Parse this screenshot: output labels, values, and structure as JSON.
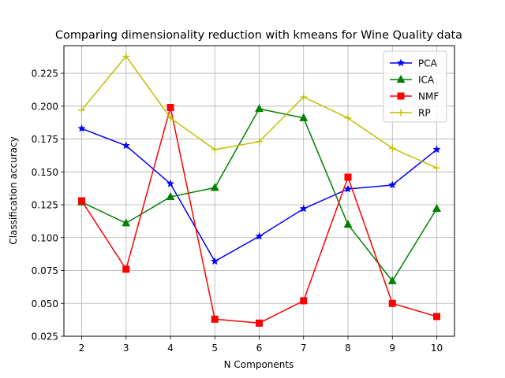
{
  "chart_data": {
    "type": "line",
    "title": "Comparing dimensionality reduction with kmeans for Wine Quality data",
    "xlabel": "N Components",
    "ylabel": "Classification accuracy",
    "x": [
      2,
      3,
      4,
      5,
      6,
      7,
      8,
      9,
      10
    ],
    "xlim": [
      1.6,
      10.4
    ],
    "ylim": [
      0.025,
      0.246
    ],
    "yticks": [
      "0.025",
      "0.050",
      "0.075",
      "0.100",
      "0.125",
      "0.150",
      "0.175",
      "0.200",
      "0.225"
    ],
    "xticks": [
      "2",
      "3",
      "4",
      "5",
      "6",
      "7",
      "8",
      "9",
      "10"
    ],
    "grid": true,
    "legend_position": "top-right",
    "series": [
      {
        "name": "PCA",
        "color": "#0000ff",
        "marker": "star",
        "values": [
          0.183,
          0.17,
          0.141,
          0.082,
          0.101,
          0.122,
          0.137,
          0.14,
          0.167
        ]
      },
      {
        "name": "ICA",
        "color": "#008000",
        "marker": "triangle",
        "values": [
          0.127,
          0.111,
          0.131,
          0.138,
          0.198,
          0.191,
          0.11,
          0.067,
          0.122
        ]
      },
      {
        "name": "NMF",
        "color": "#ff0000",
        "marker": "square",
        "values": [
          0.128,
          0.076,
          0.199,
          0.038,
          0.035,
          0.052,
          0.146,
          0.05,
          0.04
        ]
      },
      {
        "name": "RP",
        "color": "#bfbf00",
        "marker": "plus",
        "values": [
          0.197,
          0.238,
          0.191,
          0.167,
          0.173,
          0.207,
          0.191,
          0.168,
          0.153
        ]
      }
    ]
  }
}
